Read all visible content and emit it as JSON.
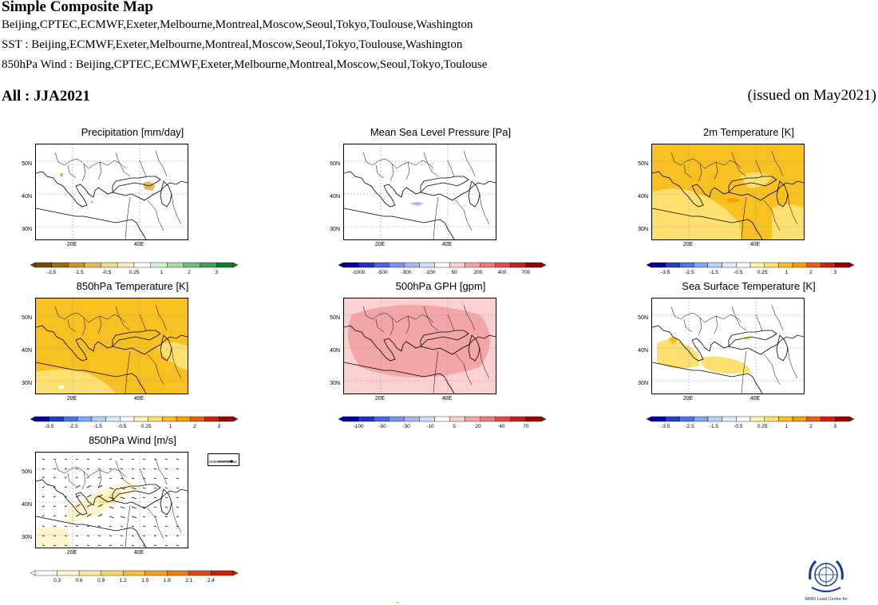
{
  "header": {
    "title": "Simple Composite Map",
    "lines": [
      "Beijing,CPTEC,ECMWF,Exeter,Melbourne,Montreal,Moscow,Seoul,Tokyo,Toulouse,Washington",
      "SST : Beijing,ECMWF,Exeter,Melbourne,Montreal,Moscow,Seoul,Tokyo,Toulouse,Washington",
      "850hPa Wind : Beijing,CPTEC,ECMWF,Exeter,Melbourne,Montreal,Moscow,Seoul,Tokyo,Toulouse"
    ],
    "season": "All : JJA2021",
    "issued": "(issued on May2021)"
  },
  "map_axes": {
    "lat_labels": [
      "50N",
      "40N",
      "30N"
    ],
    "lon_labels": [
      "20E",
      "40E"
    ]
  },
  "panels": [
    {
      "id": "precip",
      "title": "Precipitation [mm/day]",
      "colorbar_ticks": [
        "-2.5",
        "-1.5",
        "-0.5",
        "0.25",
        "1",
        "2",
        "3"
      ],
      "colors": [
        "#7a4a00",
        "#9c6a10",
        "#c89430",
        "#e3bb5c",
        "#f0d690",
        "#f8ebc4",
        "#ffffff",
        "#d8f0d0",
        "#a8dca0",
        "#70c070",
        "#40a050",
        "#108030"
      ],
      "fill": "sparse-orange"
    },
    {
      "id": "mslp",
      "title": "Mean Sea Level Pressure [Pa]",
      "colorbar_ticks": [
        "-1000",
        "-500",
        "-300",
        "-100",
        "50",
        "200",
        "400",
        "700"
      ],
      "colors": [
        "#0000a0",
        "#2030c8",
        "#4a64e0",
        "#7a94ee",
        "#a6b8f4",
        "#d0dcfa",
        "#ffffff",
        "#fad0d0",
        "#f4a6a6",
        "#ee7a7a",
        "#e04a4a",
        "#c81e1e",
        "#a00000"
      ],
      "fill": "sparse-blue"
    },
    {
      "id": "t2m",
      "title": "2m Temperature [K]",
      "colorbar_ticks": [
        "-3.5",
        "-2.5",
        "-1.5",
        "-0.5",
        "0.25",
        "1",
        "2",
        "3"
      ],
      "colors": [
        "#0000a0",
        "#2040c0",
        "#4a78e0",
        "#80a8f0",
        "#b8d0f8",
        "#e0ecfc",
        "#ffffff",
        "#fff3b0",
        "#fde070",
        "#f8c020",
        "#f4a000",
        "#e86010",
        "#d02010",
        "#a00000"
      ],
      "fill": "orange"
    },
    {
      "id": "t850",
      "title": "850hPa Temperature [K]",
      "colorbar_ticks": [
        "-3.5",
        "-2.5",
        "-1.5",
        "-0.5",
        "0.25",
        "1",
        "2",
        "3"
      ],
      "colors": [
        "#0000a0",
        "#2040c0",
        "#4a78e0",
        "#80a8f0",
        "#b8d0f8",
        "#e0ecfc",
        "#ffffff",
        "#fff3b0",
        "#fde070",
        "#f8c020",
        "#f4a000",
        "#e86010",
        "#d02010",
        "#a00000"
      ],
      "fill": "orange-full"
    },
    {
      "id": "gph500",
      "title": "500hPa GPH [gpm]",
      "colorbar_ticks": [
        "-100",
        "-50",
        "-30",
        "-10",
        "5",
        "20",
        "40",
        "70"
      ],
      "colors": [
        "#0000a0",
        "#2030c8",
        "#4a64e0",
        "#7a94ee",
        "#a6b8f4",
        "#d0dcfa",
        "#ffffff",
        "#fad0d0",
        "#f4a6a6",
        "#ee7a7a",
        "#e04a4a",
        "#c81e1e",
        "#a00000"
      ],
      "fill": "pink"
    },
    {
      "id": "sst",
      "title": "Sea Surface Temperature [K]",
      "colorbar_ticks": [
        "-3.5",
        "-2.5",
        "-1.5",
        "-0.5",
        "0.25",
        "1",
        "2",
        "3"
      ],
      "colors": [
        "#0000a0",
        "#2040c0",
        "#4a78e0",
        "#80a8f0",
        "#b8d0f8",
        "#e0ecfc",
        "#ffffff",
        "#fff3b0",
        "#fde070",
        "#f8c020",
        "#f4a000",
        "#e86010",
        "#d02010",
        "#a00000"
      ],
      "fill": "sea-yellow"
    },
    {
      "id": "wind850",
      "title": "850hPa Wind [m/s]",
      "colorbar_ticks": [
        "0.3",
        "0.6",
        "0.9",
        "1.2",
        "1.5",
        "1.8",
        "2.1",
        "2.4"
      ],
      "colors": [
        "#ffffff",
        "#fff6d0",
        "#fde8a0",
        "#fbd670",
        "#f8c040",
        "#f4a020",
        "#ee7a10",
        "#e04a10",
        "#c82000"
      ],
      "fill": "wind"
    }
  ],
  "reference_vector": "Reference Vector",
  "logo": {
    "text": "WMO Lead Centre for",
    "name": "wmo-logo"
  }
}
